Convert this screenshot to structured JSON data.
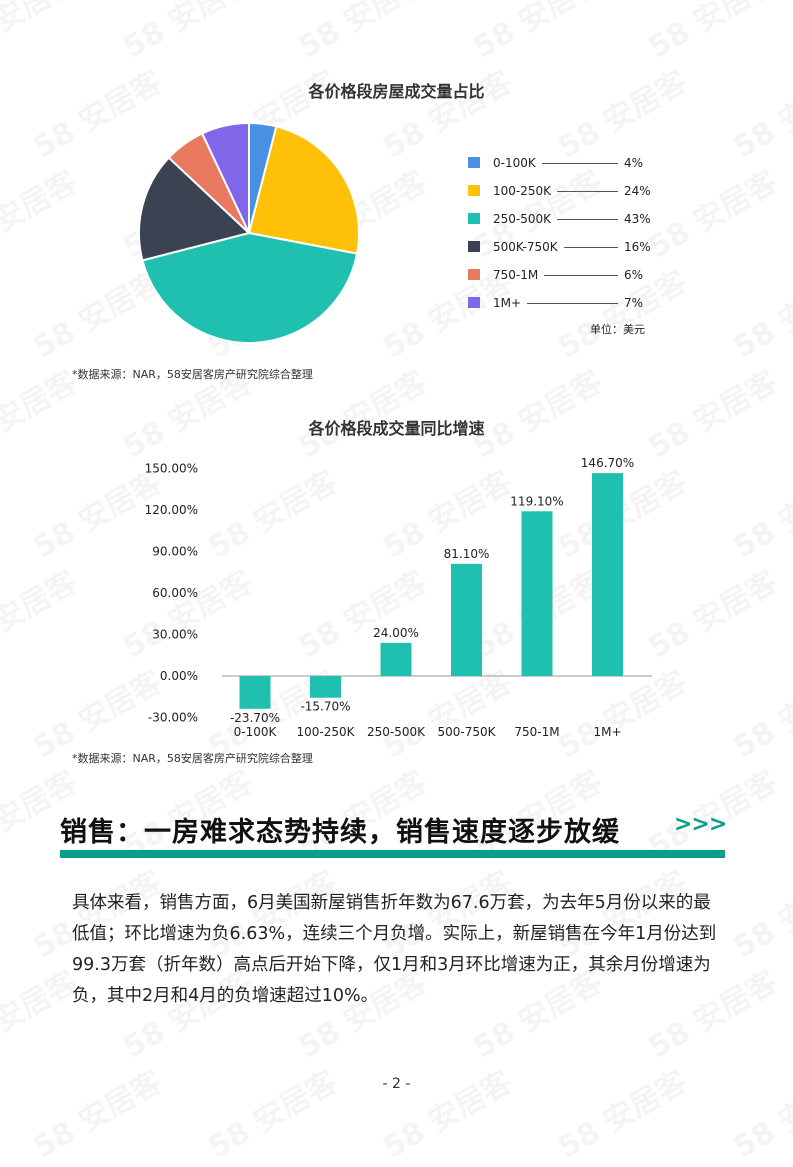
{
  "pie_chart": {
    "title": "各价格段房屋成交量占比",
    "unit_label": "单位：美元",
    "source": "*数据来源：NAR，58安居客房产研究院综合整理"
  },
  "bar_chart": {
    "title": "各价格段成交量同比增速",
    "source": "*数据来源：NAR，58安居客房产研究院综合整理"
  },
  "chart_data": [
    {
      "type": "pie",
      "title": "各价格段房屋成交量占比",
      "categories": [
        "0-100K",
        "100-250K",
        "250-500K",
        "500K-750K",
        "750-1M",
        "1M+"
      ],
      "values": [
        4,
        24,
        43,
        16,
        6,
        7
      ],
      "value_labels": [
        "4%",
        "24%",
        "43%",
        "16%",
        "6%",
        "7%"
      ],
      "colors": [
        "#4a90e2",
        "#ffc107",
        "#1fc0b0",
        "#3b4252",
        "#e9795f",
        "#8066e8"
      ],
      "legend_position": "right"
    },
    {
      "type": "bar",
      "title": "各价格段成交量同比增速",
      "categories": [
        "0-100K",
        "100-250K",
        "250-500K",
        "500-750K",
        "750-1M",
        "1M+"
      ],
      "values": [
        -23.7,
        -15.7,
        24.0,
        81.1,
        119.1,
        146.7
      ],
      "value_labels": [
        "-23.70%",
        "-15.70%",
        "24.00%",
        "81.10%",
        "119.10%",
        "146.70%"
      ],
      "yticks": [
        "150.00%",
        "120.00%",
        "90.00%",
        "60.00%",
        "30.00%",
        "0.00%",
        "-30.00%"
      ],
      "ylim": [
        -30,
        150
      ],
      "color": "#1fc0b0",
      "grid": false
    }
  ],
  "section": {
    "heading": "销售：一房难求态势持续，销售速度逐步放缓",
    "arrows": ">>>",
    "accent_color": "#0a9e8c"
  },
  "body": {
    "paragraph": "具体来看，销售方面，6月美国新屋销售折年数为67.6万套，为去年5月份以来的最低值；环比增速为负6.63%，连续三个月负增。实际上，新屋销售在今年1月份达到99.3万套（折年数）高点后开始下降，仅1月和3月环比增速为正，其余月份增速为负，其中2月和4月的负增速超过10%。"
  },
  "page_number": "- 2 -",
  "watermark_text": "58 安居客"
}
